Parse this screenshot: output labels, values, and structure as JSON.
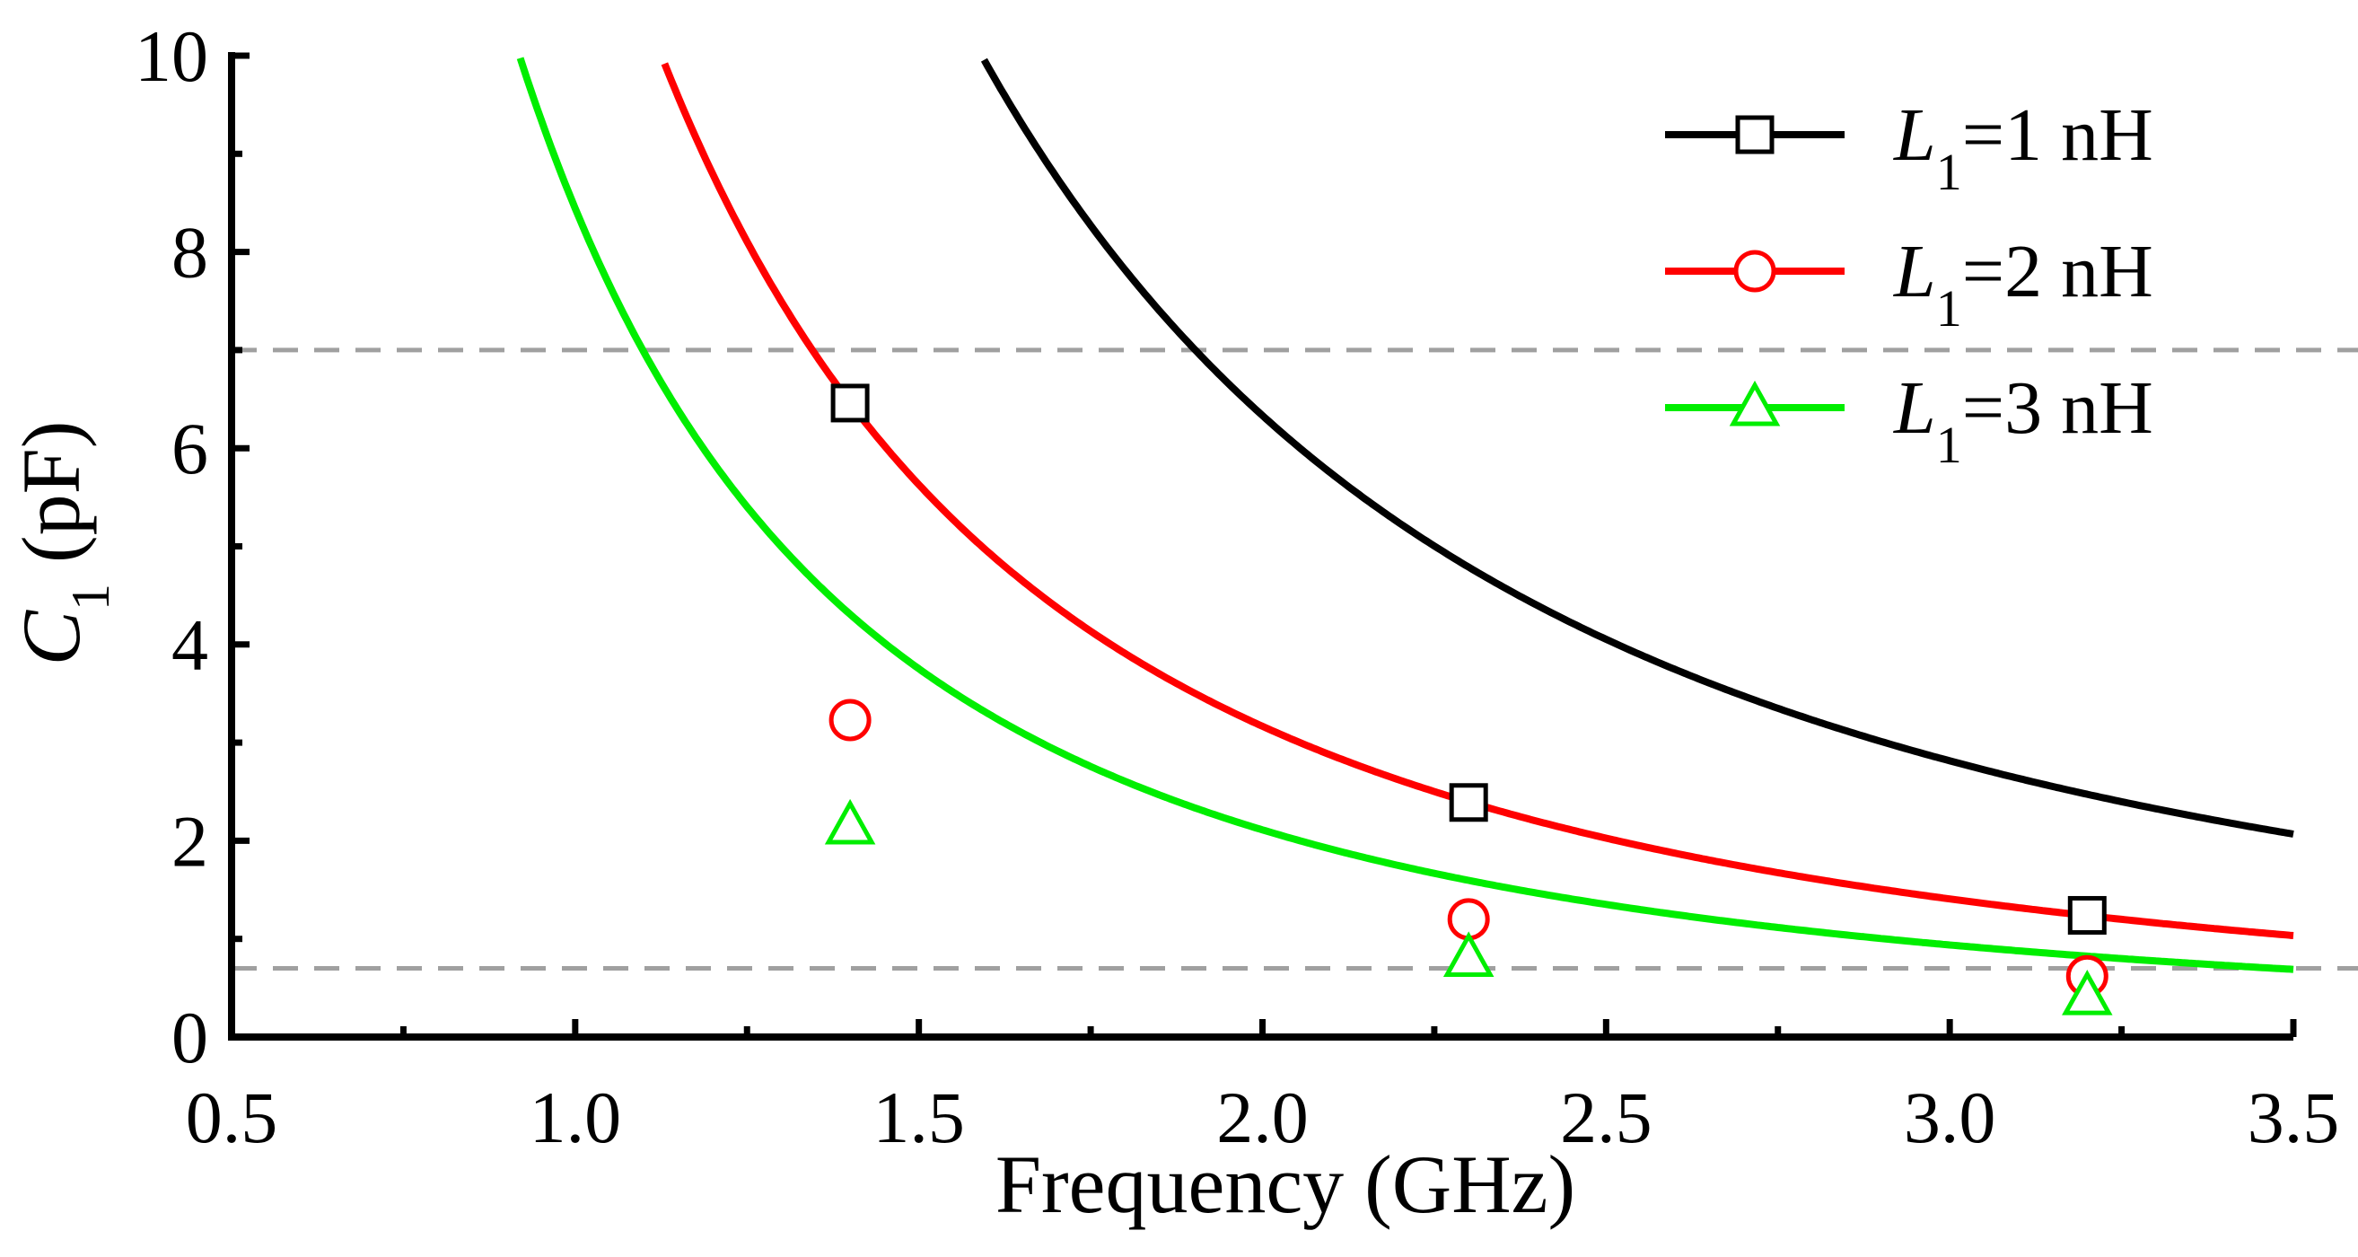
{
  "chart_data": {
    "type": "line",
    "title": "",
    "xlabel": "Frequency (GHz)",
    "ylabel": {
      "symbol": "C",
      "subscript": "1",
      "unit": " (pF)"
    },
    "xlim": [
      0.5,
      3.5
    ],
    "ylim": [
      0,
      10
    ],
    "xticks": [
      0.5,
      1.0,
      1.5,
      2.0,
      2.5,
      3.0,
      3.5
    ],
    "xtick_labels": [
      "0.5",
      "1.0",
      "1.5",
      "2.0",
      "2.5",
      "3.0",
      "3.5"
    ],
    "yticks": [
      0,
      2,
      4,
      6,
      8,
      10
    ],
    "ytick_labels": [
      "0",
      "2",
      "4",
      "6",
      "8",
      "10"
    ],
    "grid": false,
    "reference_lines": [
      {
        "axis": "y",
        "value": 7.0,
        "color": "#a0a0a0",
        "style": "dashed"
      },
      {
        "axis": "y",
        "value": 0.7,
        "color": "#a0a0a0",
        "style": "dashed"
      }
    ],
    "legend_position": "top-right",
    "series": [
      {
        "name": "L1=1 nH",
        "label_symbol": "L",
        "label_subscript": "1",
        "label_value": "=1 nH",
        "L_nH": 1,
        "color": "#000000",
        "marker": "square",
        "markers_x": [
          1.4,
          2.3,
          3.2
        ],
        "markers_y": [
          6.46,
          2.39,
          1.24
        ]
      },
      {
        "name": "L1=2 nH",
        "label_symbol": "L",
        "label_subscript": "1",
        "label_value": "=2 nH",
        "L_nH": 2,
        "color": "#ff0000",
        "marker": "circle",
        "markers_x": [
          1.4,
          2.3,
          3.2
        ],
        "markers_y": [
          3.23,
          1.2,
          0.62
        ]
      },
      {
        "name": "L1=3 nH",
        "label_symbol": "L",
        "label_subscript": "1",
        "label_value": "=3 nH",
        "L_nH": 3,
        "color": "#00ee00",
        "marker": "triangle",
        "markers_x": [
          1.4,
          2.3,
          3.2
        ],
        "markers_y": [
          2.15,
          0.8,
          0.41
        ]
      }
    ]
  }
}
